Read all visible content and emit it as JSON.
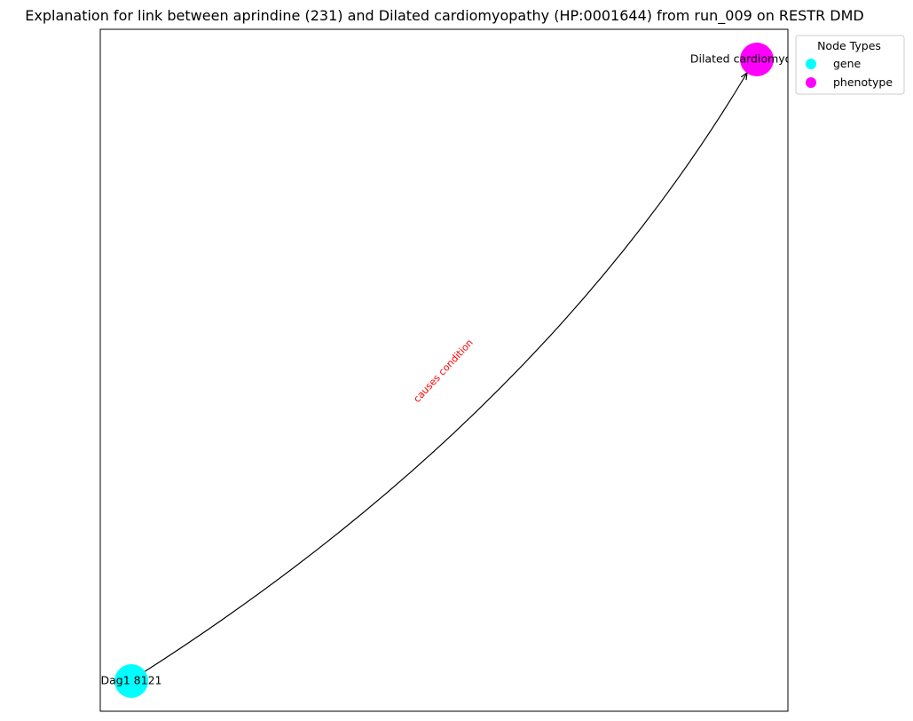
{
  "title": "Explanation for link between aprindine (231) and Dilated cardiomyopathy (HP:0001644) from run_009 on RESTR DMD",
  "nodes": [
    {
      "id": "n1",
      "label": "Dag1 8121",
      "type": "gene"
    },
    {
      "id": "n2",
      "label": "Dilated cardiomyopathy",
      "type": "phenotype"
    }
  ],
  "edges": [
    {
      "source": "n1",
      "target": "n2",
      "label": "causes condition"
    }
  ],
  "legend": {
    "title": "Node Types",
    "items": [
      {
        "label": "gene",
        "color": "#00FFFF"
      },
      {
        "label": "phenotype",
        "color": "#FF00FF"
      }
    ]
  },
  "colors": {
    "gene": "#00FFFF",
    "phenotype": "#FF00FF",
    "edge": "#000000",
    "edge_label": "#FF0000"
  }
}
